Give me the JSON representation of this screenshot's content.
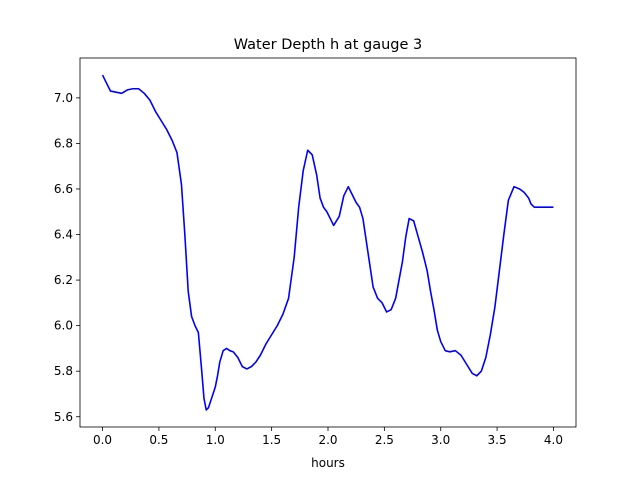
{
  "chart_data": {
    "type": "line",
    "title": "Water Depth h at gauge 3",
    "xlabel": "hours",
    "ylabel": "",
    "xlim": [
      -0.2,
      4.2
    ],
    "ylim": [
      5.555,
      7.175
    ],
    "xticks": [
      0.0,
      0.5,
      1.0,
      1.5,
      2.0,
      2.5,
      3.0,
      3.5,
      4.0
    ],
    "xtick_labels": [
      "0.0",
      "0.5",
      "1.0",
      "1.5",
      "2.0",
      "2.5",
      "3.0",
      "3.5",
      "4.0"
    ],
    "yticks": [
      5.6,
      5.8,
      6.0,
      6.2,
      6.4,
      6.6,
      6.8,
      7.0
    ],
    "ytick_labels": [
      "5.6",
      "5.8",
      "6.0",
      "6.2",
      "6.4",
      "6.6",
      "6.8",
      "7.0"
    ],
    "grid": false,
    "legend": false,
    "series": [
      {
        "color": "#0000ff",
        "x": [
          0.0,
          0.03,
          0.07,
          0.12,
          0.17,
          0.22,
          0.27,
          0.32,
          0.37,
          0.42,
          0.47,
          0.52,
          0.57,
          0.62,
          0.66,
          0.7,
          0.73,
          0.76,
          0.79,
          0.82,
          0.85,
          0.88,
          0.9,
          0.92,
          0.94,
          0.96,
          0.98,
          1.0,
          1.02,
          1.04,
          1.07,
          1.1,
          1.13,
          1.16,
          1.2,
          1.24,
          1.28,
          1.32,
          1.36,
          1.4,
          1.45,
          1.5,
          1.55,
          1.6,
          1.65,
          1.7,
          1.74,
          1.78,
          1.82,
          1.86,
          1.9,
          1.93,
          1.96,
          1.99,
          2.02,
          2.05,
          2.1,
          2.14,
          2.18,
          2.21,
          2.25,
          2.28,
          2.31,
          2.34,
          2.37,
          2.4,
          2.44,
          2.48,
          2.52,
          2.56,
          2.6,
          2.63,
          2.66,
          2.69,
          2.72,
          2.76,
          2.8,
          2.84,
          2.88,
          2.91,
          2.94,
          2.97,
          3.0,
          3.04,
          3.08,
          3.13,
          3.18,
          3.23,
          3.28,
          3.32,
          3.36,
          3.4,
          3.44,
          3.48,
          3.52,
          3.56,
          3.6,
          3.65,
          3.7,
          3.74,
          3.78,
          3.8,
          3.83,
          3.87,
          3.91,
          3.95,
          4.0
        ],
        "y": [
          7.1,
          7.07,
          7.03,
          7.025,
          7.02,
          7.035,
          7.04,
          7.04,
          7.02,
          6.99,
          6.94,
          6.9,
          6.86,
          6.81,
          6.76,
          6.62,
          6.4,
          6.15,
          6.04,
          6.0,
          5.97,
          5.8,
          5.68,
          5.63,
          5.64,
          5.67,
          5.7,
          5.73,
          5.78,
          5.84,
          5.89,
          5.9,
          5.89,
          5.885,
          5.86,
          5.82,
          5.81,
          5.82,
          5.84,
          5.87,
          5.92,
          5.96,
          6.0,
          6.05,
          6.12,
          6.3,
          6.52,
          6.68,
          6.77,
          6.75,
          6.66,
          6.56,
          6.52,
          6.5,
          6.47,
          6.44,
          6.48,
          6.57,
          6.61,
          6.58,
          6.54,
          6.52,
          6.47,
          6.37,
          6.27,
          6.17,
          6.12,
          6.1,
          6.06,
          6.07,
          6.12,
          6.2,
          6.28,
          6.39,
          6.47,
          6.46,
          6.39,
          6.32,
          6.24,
          6.15,
          6.07,
          5.98,
          5.93,
          5.89,
          5.885,
          5.89,
          5.87,
          5.83,
          5.79,
          5.78,
          5.8,
          5.86,
          5.96,
          6.08,
          6.24,
          6.4,
          6.55,
          6.61,
          6.6,
          6.585,
          6.56,
          6.535,
          6.52,
          6.52,
          6.52,
          6.52,
          6.52
        ]
      }
    ]
  }
}
